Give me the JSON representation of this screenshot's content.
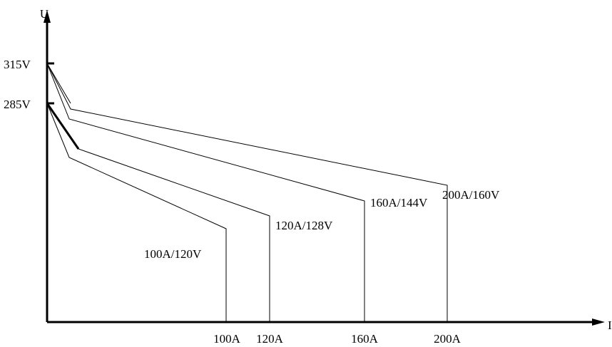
{
  "axes": {
    "y_label": "U",
    "x_label": "I",
    "y_ticks": [
      "315V",
      "285V"
    ],
    "x_ticks": [
      "100A",
      "120A",
      "160A",
      "200A"
    ]
  },
  "curves": [
    {
      "label": "100A/120V",
      "rated_current": "100A",
      "rated_voltage": "120V",
      "no_load_voltage": "285V"
    },
    {
      "label": "120A/128V",
      "rated_current": "120A",
      "rated_voltage": "128V",
      "no_load_voltage": "285V"
    },
    {
      "label": "160A/144V",
      "rated_current": "160A",
      "rated_voltage": "144V",
      "no_load_voltage": "315V"
    },
    {
      "label": "200A/160V",
      "rated_current": "200A",
      "rated_voltage": "160V",
      "no_load_voltage": "315V"
    }
  ]
}
